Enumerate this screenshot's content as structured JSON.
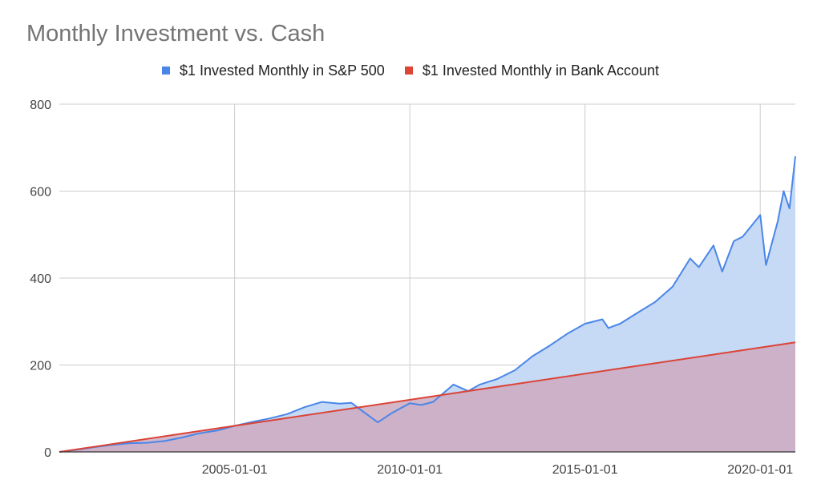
{
  "chart_data": {
    "type": "area",
    "title": "Monthly Investment vs. Cash",
    "xlabel": "",
    "ylabel": "",
    "x_range": [
      "2000-01-01",
      "2021-01-01"
    ],
    "ylim": [
      0,
      800
    ],
    "y_ticks": [
      0,
      200,
      400,
      600,
      800
    ],
    "x_ticks": [
      "2005-01-01",
      "2010-01-01",
      "2015-01-01",
      "2020-01-01"
    ],
    "grid": true,
    "legend_position": "top",
    "series": [
      {
        "name": "$1 Invested Monthly in S&P 500",
        "color": "#4a86e8",
        "fill": "#c6d9f5",
        "points": [
          [
            "2000-01-01",
            0
          ],
          [
            "2000-07-01",
            5
          ],
          [
            "2001-01-01",
            11
          ],
          [
            "2001-07-01",
            16
          ],
          [
            "2002-01-01",
            20
          ],
          [
            "2002-07-01",
            21
          ],
          [
            "2003-01-01",
            25
          ],
          [
            "2003-07-01",
            33
          ],
          [
            "2004-01-01",
            43
          ],
          [
            "2004-07-01",
            49
          ],
          [
            "2005-01-01",
            60
          ],
          [
            "2005-07-01",
            69
          ],
          [
            "2006-01-01",
            77
          ],
          [
            "2006-07-01",
            87
          ],
          [
            "2007-01-01",
            103
          ],
          [
            "2007-07-01",
            115
          ],
          [
            "2008-01-01",
            111
          ],
          [
            "2008-05-01",
            113
          ],
          [
            "2008-10-01",
            88
          ],
          [
            "2009-02-01",
            68
          ],
          [
            "2009-07-01",
            90
          ],
          [
            "2010-01-01",
            112
          ],
          [
            "2010-05-01",
            108
          ],
          [
            "2010-09-01",
            115
          ],
          [
            "2011-01-01",
            138
          ],
          [
            "2011-04-01",
            155
          ],
          [
            "2011-09-01",
            140
          ],
          [
            "2012-01-01",
            155
          ],
          [
            "2012-07-01",
            168
          ],
          [
            "2013-01-01",
            188
          ],
          [
            "2013-07-01",
            220
          ],
          [
            "2014-01-01",
            245
          ],
          [
            "2014-07-01",
            272
          ],
          [
            "2015-01-01",
            295
          ],
          [
            "2015-07-01",
            305
          ],
          [
            "2015-09-01",
            285
          ],
          [
            "2016-01-01",
            295
          ],
          [
            "2016-07-01",
            320
          ],
          [
            "2017-01-01",
            345
          ],
          [
            "2017-07-01",
            380
          ],
          [
            "2018-01-01",
            445
          ],
          [
            "2018-04-01",
            425
          ],
          [
            "2018-09-01",
            475
          ],
          [
            "2018-12-01",
            415
          ],
          [
            "2019-04-01",
            485
          ],
          [
            "2019-07-01",
            495
          ],
          [
            "2020-01-01",
            545
          ],
          [
            "2020-03-01",
            430
          ],
          [
            "2020-07-01",
            530
          ],
          [
            "2020-09-01",
            600
          ],
          [
            "2020-11-01",
            560
          ],
          [
            "2021-01-01",
            680
          ]
        ]
      },
      {
        "name": "$1 Invested Monthly in Bank Account",
        "color": "#db4437",
        "fill": "#cca9bf",
        "points": [
          [
            "2000-01-01",
            0
          ],
          [
            "2021-01-01",
            252
          ]
        ]
      }
    ]
  }
}
